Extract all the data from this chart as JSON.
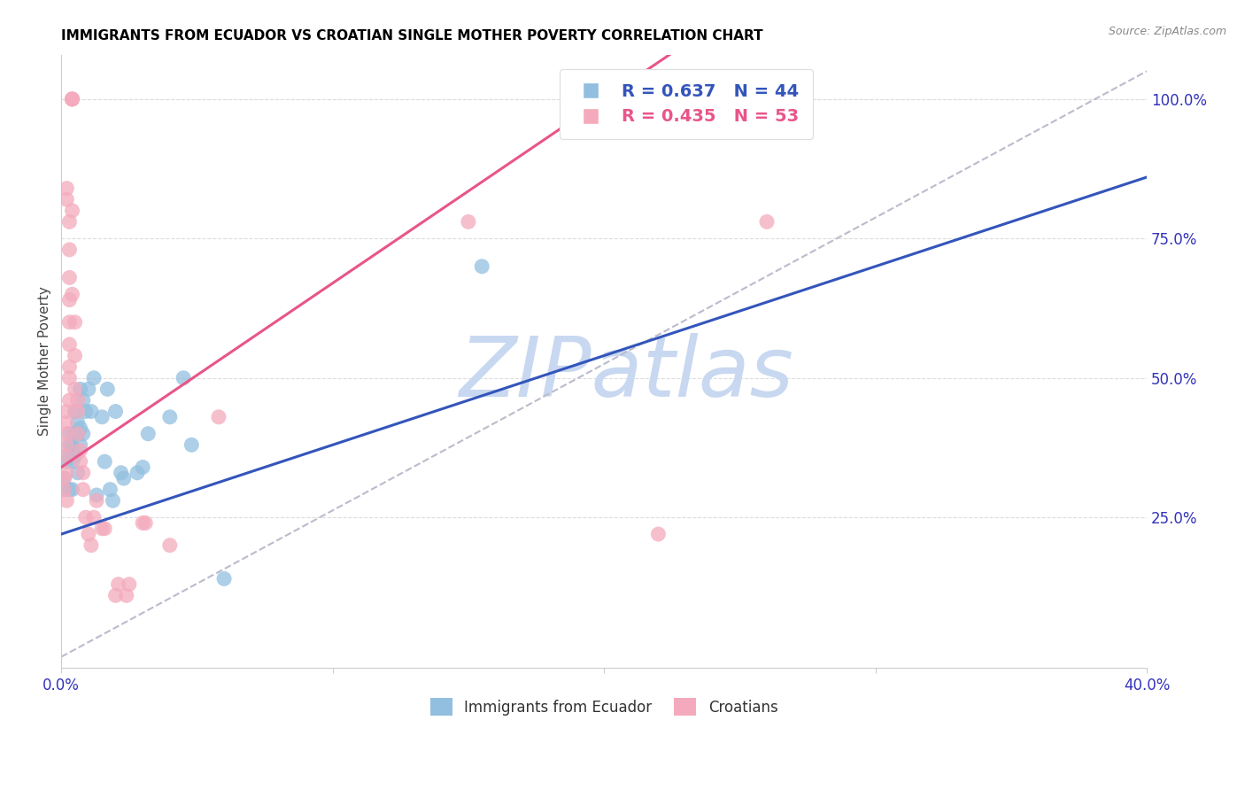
{
  "title": "IMMIGRANTS FROM ECUADOR VS CROATIAN SINGLE MOTHER POVERTY CORRELATION CHART",
  "source": "Source: ZipAtlas.com",
  "ylabel": "Single Mother Poverty",
  "right_ytick_labels": [
    "25.0%",
    "50.0%",
    "75.0%",
    "100.0%"
  ],
  "right_ytick_values": [
    0.25,
    0.5,
    0.75,
    1.0
  ],
  "xlim": [
    0.0,
    0.4
  ],
  "ylim": [
    -0.02,
    1.08
  ],
  "blue_scatter": [
    [
      0.001,
      0.32
    ],
    [
      0.001,
      0.3
    ],
    [
      0.002,
      0.35
    ],
    [
      0.002,
      0.36
    ],
    [
      0.003,
      0.38
    ],
    [
      0.003,
      0.4
    ],
    [
      0.003,
      0.3
    ],
    [
      0.004,
      0.37
    ],
    [
      0.004,
      0.35
    ],
    [
      0.004,
      0.38
    ],
    [
      0.004,
      0.3
    ],
    [
      0.005,
      0.4
    ],
    [
      0.005,
      0.44
    ],
    [
      0.005,
      0.36
    ],
    [
      0.006,
      0.4
    ],
    [
      0.006,
      0.42
    ],
    [
      0.006,
      0.33
    ],
    [
      0.007,
      0.41
    ],
    [
      0.007,
      0.48
    ],
    [
      0.007,
      0.38
    ],
    [
      0.008,
      0.46
    ],
    [
      0.008,
      0.4
    ],
    [
      0.009,
      0.44
    ],
    [
      0.01,
      0.48
    ],
    [
      0.011,
      0.44
    ],
    [
      0.012,
      0.5
    ],
    [
      0.013,
      0.29
    ],
    [
      0.015,
      0.43
    ],
    [
      0.016,
      0.35
    ],
    [
      0.017,
      0.48
    ],
    [
      0.018,
      0.3
    ],
    [
      0.019,
      0.28
    ],
    [
      0.02,
      0.44
    ],
    [
      0.022,
      0.33
    ],
    [
      0.023,
      0.32
    ],
    [
      0.028,
      0.33
    ],
    [
      0.03,
      0.34
    ],
    [
      0.032,
      0.4
    ],
    [
      0.04,
      0.43
    ],
    [
      0.045,
      0.5
    ],
    [
      0.048,
      0.38
    ],
    [
      0.06,
      0.14
    ],
    [
      0.155,
      0.7
    ],
    [
      0.2,
      1.0
    ]
  ],
  "pink_scatter": [
    [
      0.001,
      0.3
    ],
    [
      0.001,
      0.32
    ],
    [
      0.002,
      0.33
    ],
    [
      0.002,
      0.28
    ],
    [
      0.002,
      0.36
    ],
    [
      0.002,
      0.38
    ],
    [
      0.002,
      0.4
    ],
    [
      0.002,
      0.42
    ],
    [
      0.002,
      0.44
    ],
    [
      0.003,
      0.46
    ],
    [
      0.003,
      0.5
    ],
    [
      0.003,
      0.52
    ],
    [
      0.003,
      0.56
    ],
    [
      0.003,
      0.6
    ],
    [
      0.003,
      0.64
    ],
    [
      0.003,
      0.68
    ],
    [
      0.003,
      0.73
    ],
    [
      0.003,
      0.78
    ],
    [
      0.004,
      1.0
    ],
    [
      0.004,
      1.0
    ],
    [
      0.004,
      1.0
    ],
    [
      0.004,
      0.8
    ],
    [
      0.004,
      0.65
    ],
    [
      0.005,
      0.6
    ],
    [
      0.005,
      0.54
    ],
    [
      0.005,
      0.48
    ],
    [
      0.006,
      0.46
    ],
    [
      0.006,
      0.44
    ],
    [
      0.006,
      0.4
    ],
    [
      0.007,
      0.37
    ],
    [
      0.007,
      0.35
    ],
    [
      0.008,
      0.33
    ],
    [
      0.008,
      0.3
    ],
    [
      0.009,
      0.25
    ],
    [
      0.01,
      0.22
    ],
    [
      0.011,
      0.2
    ],
    [
      0.012,
      0.25
    ],
    [
      0.013,
      0.28
    ],
    [
      0.015,
      0.23
    ],
    [
      0.016,
      0.23
    ],
    [
      0.02,
      0.11
    ],
    [
      0.021,
      0.13
    ],
    [
      0.024,
      0.11
    ],
    [
      0.025,
      0.13
    ],
    [
      0.03,
      0.24
    ],
    [
      0.031,
      0.24
    ],
    [
      0.04,
      0.2
    ],
    [
      0.058,
      0.43
    ],
    [
      0.15,
      0.78
    ],
    [
      0.22,
      0.22
    ],
    [
      0.26,
      0.78
    ],
    [
      0.002,
      0.82
    ],
    [
      0.002,
      0.84
    ]
  ],
  "blue_line_intercept": 0.22,
  "blue_line_slope": 1.6,
  "pink_line_intercept": 0.34,
  "pink_line_slope": 3.3,
  "blue_color": "#92BFDF",
  "pink_color": "#F4AABC",
  "blue_line_color": "#3355BB",
  "pink_line_color": "#E8558A",
  "ref_line_color": "#BBBBCC",
  "watermark": "ZIPatlas",
  "watermark_color": "#C8D8F0",
  "title_fontsize": 11,
  "source_fontsize": 9,
  "axis_label_color": "#3333BB",
  "grid_color": "#DDDDDD"
}
